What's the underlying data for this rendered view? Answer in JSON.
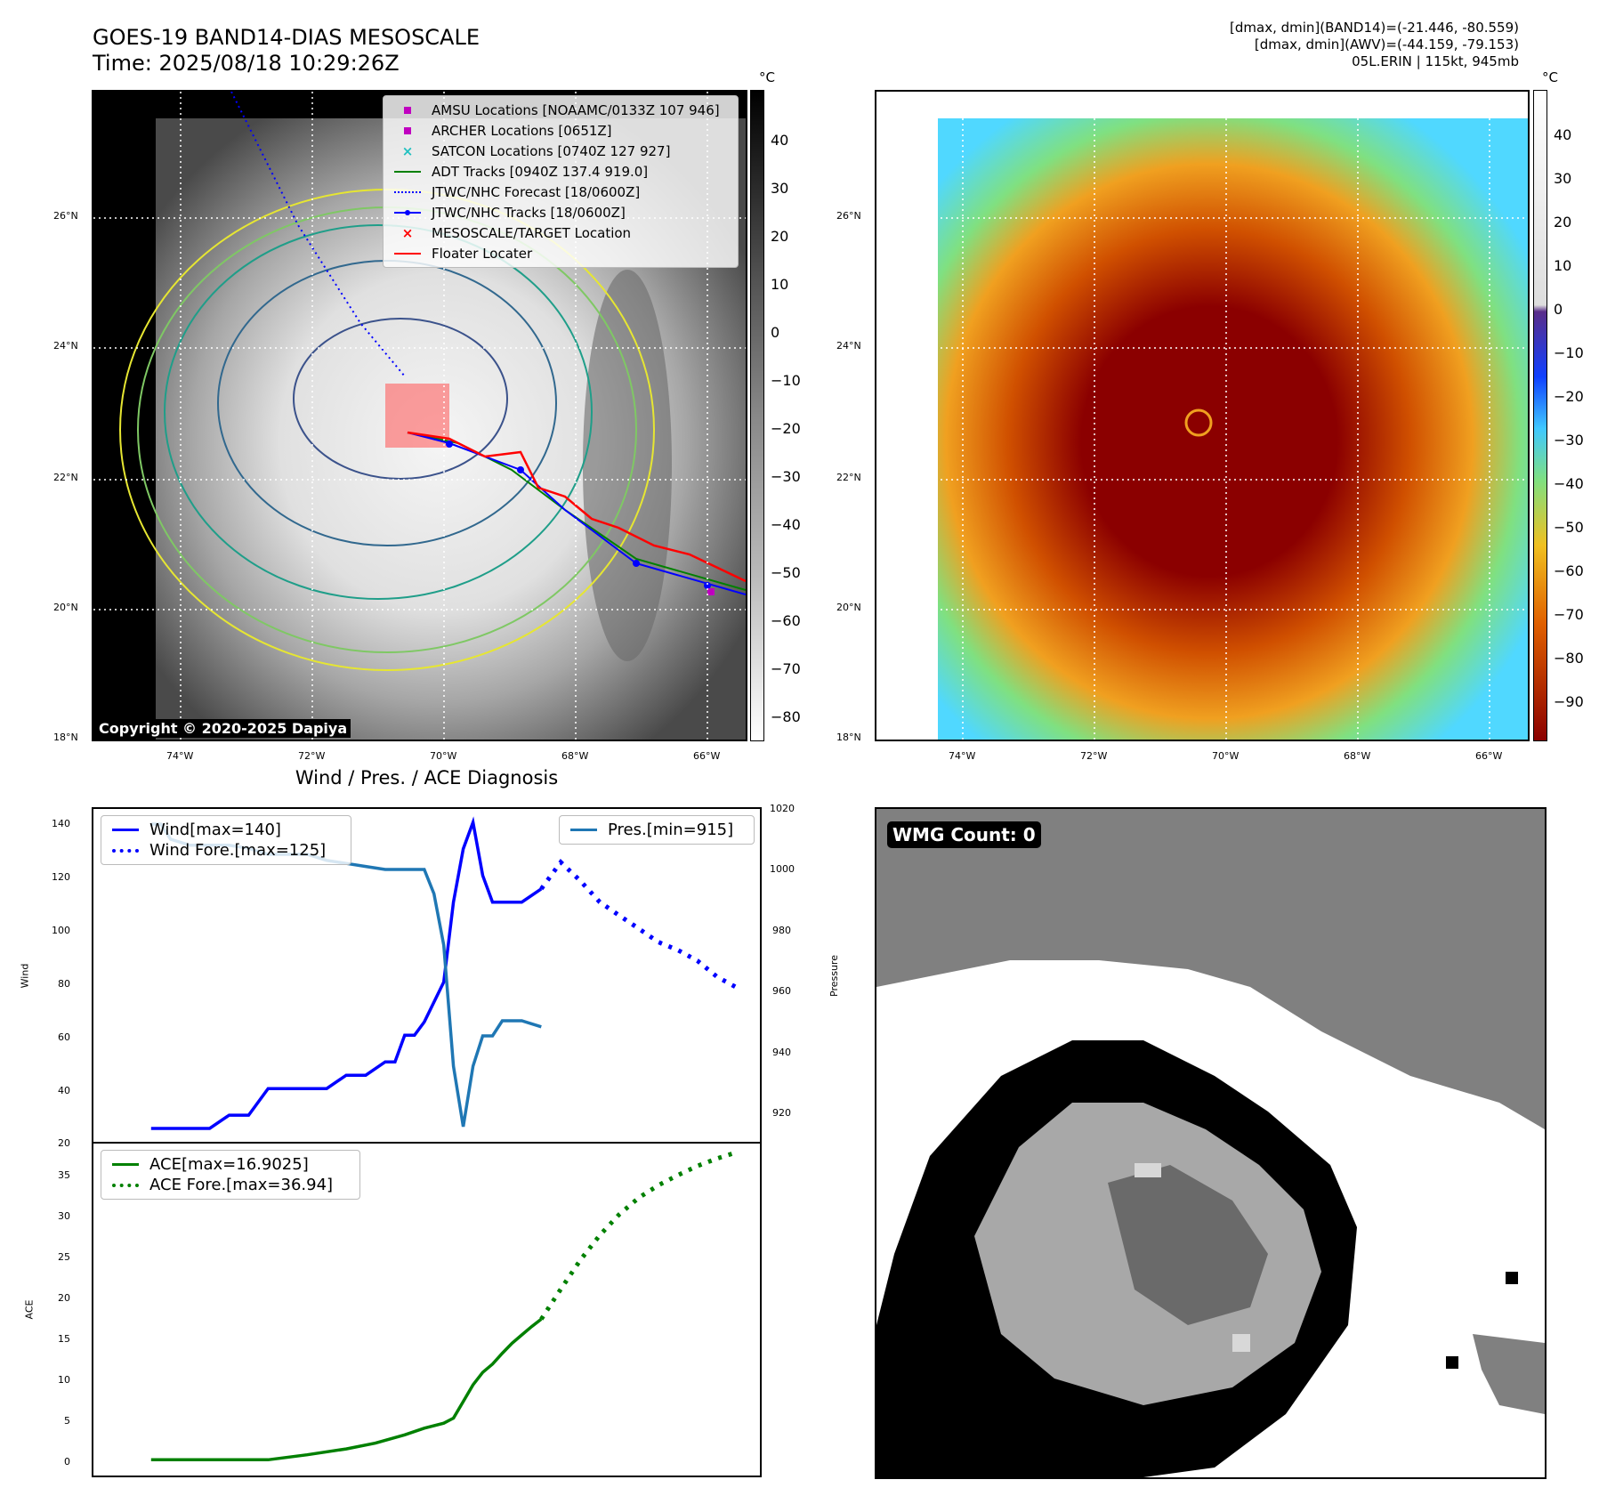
{
  "header": {
    "title_line1": "GOES-19 BAND14-DIAS MESOSCALE",
    "title_line2": "Time: 2025/08/18 10:29:26Z",
    "right_line1": "[dmax, dmin](BAND14)=(-21.446, -80.559)",
    "right_line2": "[dmax, dmin](AWV)=(-44.159, -79.153)",
    "right_line3": "05L.ERIN | 115kt, 945mb"
  },
  "maps": {
    "lon_ticks": [
      "74°W",
      "72°W",
      "70°W",
      "68°W",
      "66°W"
    ],
    "lat_ticks": [
      "26°N",
      "24°N",
      "22°N",
      "20°N",
      "18°N"
    ],
    "copyright": "Copyright © 2020-2025 Dapiya",
    "colorbar_unit": "°C",
    "left_colorbar_ticks": [
      "40",
      "30",
      "20",
      "10",
      "0",
      "−10",
      "−20",
      "−30",
      "−40",
      "−50",
      "−60",
      "−70",
      "−80"
    ],
    "right_colorbar_ticks": [
      "40",
      "30",
      "20",
      "10",
      "0",
      "−10",
      "−20",
      "−30",
      "−40",
      "−50",
      "−60",
      "−70",
      "−80",
      "−90"
    ],
    "legend": [
      {
        "label": "AMSU Locations [NOAAMC/0133Z 107 946]",
        "symbol": "square",
        "color": "#c000c0"
      },
      {
        "label": "ARCHER Locations [0651Z]",
        "symbol": "square",
        "color": "#c000c0"
      },
      {
        "label": "SATCON Locations [0740Z 127 927]",
        "symbol": "x",
        "color": "#20c0c0"
      },
      {
        "label": "ADT Tracks [0940Z 137.4 919.0]",
        "symbol": "line",
        "color": "#008000"
      },
      {
        "label": "JTWC/NHC Forecast [18/0600Z]",
        "symbol": "dotted",
        "color": "#0000ff"
      },
      {
        "label": "JTWC/NHC Tracks [18/0600Z]",
        "symbol": "line-dot",
        "color": "#0000ff"
      },
      {
        "label": "MESOSCALE/TARGET Location",
        "symbol": "x",
        "color": "#ff0000"
      },
      {
        "label": "Floater Locater",
        "symbol": "line",
        "color": "#ff0000"
      }
    ]
  },
  "diagnosis": {
    "title": "Wind / Pres. / ACE Diagnosis",
    "wind_ylabel": "Wind",
    "pressure_ylabel": "Pressure",
    "ace_ylabel": "ACE",
    "wind_ticks": [
      "140",
      "120",
      "100",
      "80",
      "60",
      "40",
      "20"
    ],
    "pressure_ticks": [
      "1020",
      "1000",
      "980",
      "960",
      "940",
      "920"
    ],
    "ace_ticks": [
      "35",
      "30",
      "25",
      "20",
      "15",
      "10",
      "5",
      "0"
    ],
    "legend_wind": "Wind[max=140]",
    "legend_wind_fore": "Wind Fore.[max=125]",
    "legend_pres": "Pres.[min=915]",
    "legend_ace": "ACE[max=16.9025]",
    "legend_ace_fore": "ACE Fore.[max=36.94]"
  },
  "wmg": {
    "badge": "WMG Count: 0"
  },
  "chart_data": [
    {
      "type": "line",
      "title": "Wind / Pres. / ACE Diagnosis",
      "ylabel": "Wind",
      "ylim": [
        20,
        145
      ],
      "series": [
        {
          "name": "Wind[max=140]",
          "color": "#0000ff",
          "style": "solid",
          "x": [
            0,
            8,
            12,
            16,
            20,
            24,
            32,
            36,
            40,
            44,
            48,
            50,
            52,
            54,
            56,
            60,
            62,
            64,
            66,
            68,
            70,
            72,
            76,
            80
          ],
          "y": [
            25,
            25,
            25,
            30,
            30,
            40,
            40,
            40,
            45,
            45,
            50,
            50,
            60,
            60,
            65,
            80,
            110,
            130,
            140,
            120,
            110,
            110,
            110,
            115
          ]
        },
        {
          "name": "Wind Fore.[max=125]",
          "color": "#0000ff",
          "style": "dotted",
          "x": [
            80,
            84,
            88,
            92,
            96,
            100,
            104,
            108,
            112,
            116,
            120
          ],
          "y": [
            115,
            125,
            118,
            110,
            105,
            100,
            95,
            92,
            88,
            82,
            78
          ]
        }
      ]
    },
    {
      "type": "line",
      "ylabel": "Pressure",
      "ylim": [
        910,
        1020
      ],
      "series": [
        {
          "name": "Pres.[min=915]",
          "color": "#1f77b4",
          "style": "solid",
          "x": [
            0,
            2,
            4,
            8,
            12,
            16,
            20,
            24,
            28,
            32,
            36,
            40,
            44,
            48,
            52,
            56,
            58,
            60,
            62,
            64,
            66,
            68,
            70,
            72,
            74,
            76,
            80
          ],
          "y": [
            1015,
            1015,
            1010,
            1008,
            1008,
            1008,
            1007,
            1005,
            1005,
            1005,
            1003,
            1002,
            1001,
            1000,
            1000,
            1000,
            992,
            975,
            935,
            915,
            935,
            945,
            945,
            950,
            950,
            950,
            948
          ]
        }
      ]
    },
    {
      "type": "line",
      "ylabel": "ACE",
      "ylim": [
        -2,
        38
      ],
      "series": [
        {
          "name": "ACE[max=16.9025]",
          "color": "#008000",
          "style": "solid",
          "x": [
            0,
            8,
            16,
            24,
            32,
            40,
            46,
            52,
            56,
            60,
            62,
            64,
            66,
            68,
            70,
            72,
            74,
            76,
            78,
            80
          ],
          "y": [
            0,
            0,
            0,
            0,
            0.6,
            1.3,
            2,
            3,
            3.8,
            4.4,
            5,
            7,
            9,
            10.5,
            11.5,
            12.8,
            14,
            15,
            16,
            16.9
          ]
        },
        {
          "name": "ACE Fore.[max=36.94]",
          "color": "#008000",
          "style": "dotted",
          "x": [
            80,
            84,
            88,
            92,
            96,
            100,
            104,
            108,
            112,
            116,
            120
          ],
          "y": [
            16.9,
            20.5,
            24,
            27,
            29.5,
            31.5,
            33,
            34.2,
            35.3,
            36.2,
            36.94
          ]
        }
      ]
    }
  ]
}
